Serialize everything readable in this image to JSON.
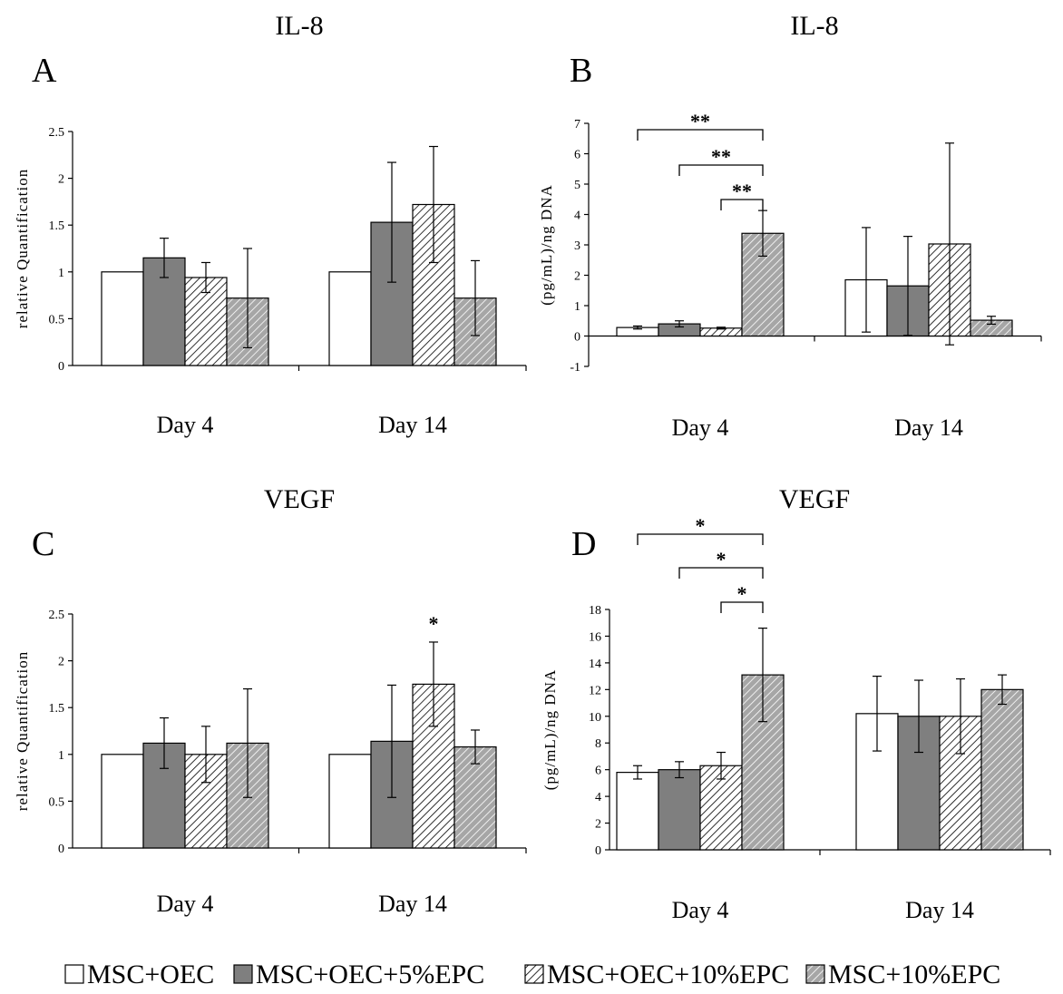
{
  "legend": [
    {
      "label": "MSC+OEC",
      "fill": "white"
    },
    {
      "label": "MSC+OEC+5%EPC",
      "fill": "gray"
    },
    {
      "label": "MSC+OEC+10%EPC",
      "fill": "hatch"
    },
    {
      "label": "MSC+10%EPC",
      "fill": "hatch-gray"
    }
  ],
  "colors": {
    "gray": "#7f7f7f",
    "hatch_gray_bg": "#9a9a9a",
    "line": "#000000"
  },
  "chart_data": [
    {
      "type": "bar",
      "panel": "A",
      "title": "IL-8",
      "ylabel": "relative Quantification",
      "categories": [
        "Day 4",
        "Day 14"
      ],
      "ylim": [
        0,
        2.5
      ],
      "yticks": [
        "0",
        "0.5",
        "1",
        "1.5",
        "2",
        "2.5"
      ],
      "series": [
        {
          "name": "MSC+OEC",
          "values": [
            1.0,
            1.0
          ],
          "errors": [
            0,
            0
          ]
        },
        {
          "name": "MSC+OEC+5%EPC",
          "values": [
            1.15,
            1.53
          ],
          "errors": [
            0.21,
            0.64
          ]
        },
        {
          "name": "MSC+OEC+10%EPC",
          "values": [
            0.94,
            1.72
          ],
          "errors": [
            0.16,
            0.62
          ]
        },
        {
          "name": "MSC+10%EPC",
          "values": [
            0.72,
            0.72
          ],
          "errors": [
            0.53,
            0.4
          ]
        }
      ],
      "annotations": []
    },
    {
      "type": "bar",
      "panel": "B",
      "title": "IL-8",
      "ylabel": "(pg/mL)/ng DNA",
      "categories": [
        "Day 4",
        "Day 14"
      ],
      "ylim": [
        -1,
        7
      ],
      "yticks": [
        "-1",
        "0",
        "1",
        "2",
        "3",
        "4",
        "5",
        "6",
        "7"
      ],
      "series": [
        {
          "name": "MSC+OEC",
          "values": [
            0.28,
            1.85
          ],
          "errors": [
            0.05,
            1.72
          ]
        },
        {
          "name": "MSC+OEC+5%EPC",
          "values": [
            0.4,
            1.65
          ],
          "errors": [
            0.1,
            1.63
          ]
        },
        {
          "name": "MSC+OEC+10%EPC",
          "values": [
            0.26,
            3.03
          ],
          "errors": [
            0.03,
            3.32
          ]
        },
        {
          "name": "MSC+10%EPC",
          "values": [
            3.38,
            0.52
          ],
          "errors": [
            0.75,
            0.13
          ]
        }
      ],
      "annotations": [
        "**",
        "**",
        "**"
      ]
    },
    {
      "type": "bar",
      "panel": "C",
      "title": "VEGF",
      "ylabel": "relative Quantification",
      "categories": [
        "Day 4",
        "Day 14"
      ],
      "ylim": [
        0,
        2.5
      ],
      "yticks": [
        "0",
        "0.5",
        "1",
        "1.5",
        "2",
        "2.5"
      ],
      "series": [
        {
          "name": "MSC+OEC",
          "values": [
            1.0,
            1.0
          ],
          "errors": [
            0,
            0
          ]
        },
        {
          "name": "MSC+OEC+5%EPC",
          "values": [
            1.12,
            1.14
          ],
          "errors": [
            0.27,
            0.6
          ]
        },
        {
          "name": "MSC+OEC+10%EPC",
          "values": [
            1.0,
            1.75
          ],
          "errors": [
            0.3,
            0.45
          ]
        },
        {
          "name": "MSC+10%EPC",
          "values": [
            1.12,
            1.08
          ],
          "errors": [
            0.58,
            0.18
          ]
        }
      ],
      "annotations": [
        "*"
      ]
    },
    {
      "type": "bar",
      "panel": "D",
      "title": "VEGF",
      "ylabel": "(pg/mL)/ng DNA",
      "categories": [
        "Day 4",
        "Day 14"
      ],
      "ylim": [
        0,
        18
      ],
      "yticks": [
        "0",
        "2",
        "4",
        "6",
        "8",
        "10",
        "12",
        "14",
        "16",
        "18"
      ],
      "series": [
        {
          "name": "MSC+OEC",
          "values": [
            5.8,
            10.2
          ],
          "errors": [
            0.5,
            2.8
          ]
        },
        {
          "name": "MSC+OEC+5%EPC",
          "values": [
            6.0,
            10.0
          ],
          "errors": [
            0.6,
            2.7
          ]
        },
        {
          "name": "MSC+OEC+10%EPC",
          "values": [
            6.3,
            10.0
          ],
          "errors": [
            1.0,
            2.8
          ]
        },
        {
          "name": "MSC+10%EPC",
          "values": [
            13.1,
            12.0
          ],
          "errors": [
            3.5,
            1.1
          ]
        }
      ],
      "annotations": [
        "*",
        "*",
        "*"
      ]
    }
  ]
}
